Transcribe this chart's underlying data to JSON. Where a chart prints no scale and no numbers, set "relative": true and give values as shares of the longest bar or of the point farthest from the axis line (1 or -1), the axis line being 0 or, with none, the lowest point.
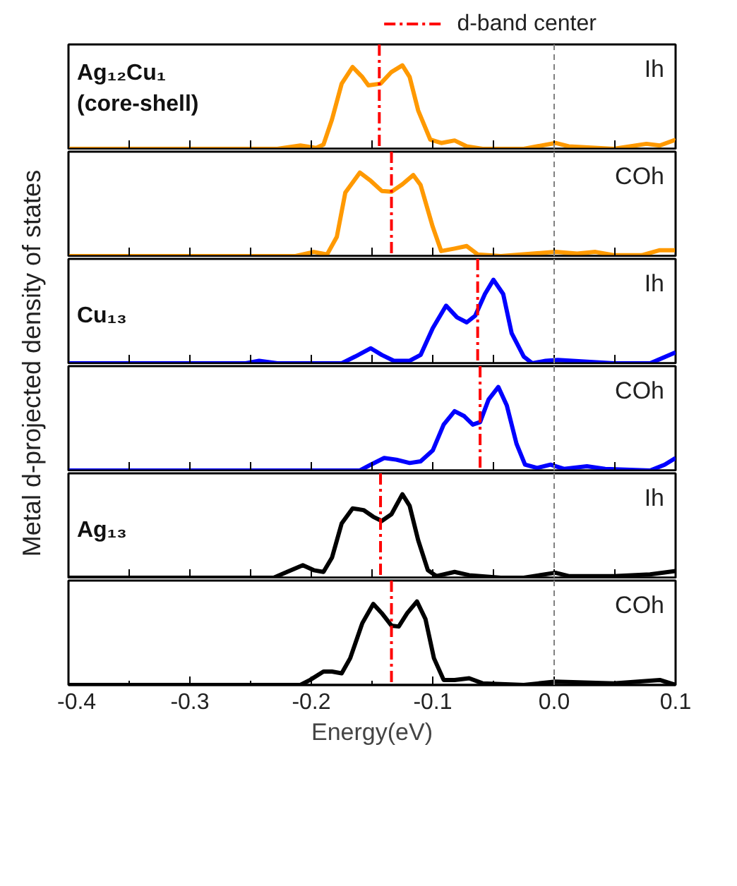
{
  "chart_data": [
    {
      "type": "line",
      "relative": true,
      "ylabel": "Metal d-projected density of states",
      "legend": "top right",
      "tick_labels": false,
      "xlim": [
        -0.4,
        0.1
      ],
      "xticks": [
        {
          "value": -0.4,
          "label": null
        },
        {
          "value": -0.35,
          "label": null
        },
        {
          "value": -0.3,
          "label": null
        },
        {
          "value": -0.25,
          "label": null
        },
        {
          "value": -0.2,
          "label": null
        },
        {
          "value": -0.15,
          "label": null
        },
        {
          "value": -0.1,
          "label": null
        },
        {
          "value": -0.05,
          "label": null
        },
        {
          "value": 0,
          "label": null
        },
        {
          "value": 0.05,
          "label": null
        },
        {
          "value": 0.1,
          "label": null
        }
      ],
      "annotations": [
        "Ih",
        "Ag₁₂Cu₁",
        "(core-shell)"
      ],
      "ref_lines": [
        {
          "axis": "x",
          "value": -0.144,
          "label": "d-band center",
          "color": "#ff0000",
          "line_style": "dashdot"
        },
        {
          "axis": "x",
          "value": 0,
          "label": null,
          "color": "#808080",
          "line_style": "dashed"
        }
      ],
      "x": [
        -0.4,
        -0.228,
        -0.209,
        -0.196,
        -0.19,
        -0.183,
        -0.175,
        -0.166,
        -0.158,
        -0.153,
        -0.143,
        -0.134,
        -0.125,
        -0.119,
        -0.112,
        -0.102,
        -0.093,
        -0.082,
        -0.072,
        -0.059,
        -0.025,
        0.001,
        0.012,
        0.049,
        0.076,
        0.087,
        0.1
      ],
      "series": [
        {
          "color": "#ff9900",
          "values": [
            0,
            0,
            0.04,
            0.01,
            0.05,
            0.35,
            0.78,
            0.98,
            0.86,
            0.76,
            0.78,
            0.92,
            1.0,
            0.86,
            0.46,
            0.11,
            0.07,
            0.1,
            0.03,
            0,
            0,
            0.07,
            0.03,
            0,
            0.06,
            0.04,
            0.11
          ]
        }
      ]
    },
    {
      "type": "line",
      "relative": true,
      "tick_labels": false,
      "xlim": [
        -0.4,
        0.1
      ],
      "xticks": [
        {
          "value": -0.4,
          "label": null
        },
        {
          "value": -0.35,
          "label": null
        },
        {
          "value": -0.3,
          "label": null
        },
        {
          "value": -0.25,
          "label": null
        },
        {
          "value": -0.2,
          "label": null
        },
        {
          "value": -0.15,
          "label": null
        },
        {
          "value": -0.1,
          "label": null
        },
        {
          "value": -0.05,
          "label": null
        },
        {
          "value": 0,
          "label": null
        },
        {
          "value": 0.05,
          "label": null
        },
        {
          "value": 0.1,
          "label": null
        }
      ],
      "annotations": [
        "COh"
      ],
      "ref_lines": [
        {
          "axis": "x",
          "value": -0.134,
          "label": null,
          "color": "#ff0000",
          "line_style": "dashdot"
        },
        {
          "axis": "x",
          "value": 0,
          "label": null,
          "color": "#808080",
          "line_style": "dashed"
        }
      ],
      "x": [
        -0.4,
        -0.213,
        -0.198,
        -0.187,
        -0.179,
        -0.172,
        -0.16,
        -0.151,
        -0.142,
        -0.134,
        -0.125,
        -0.116,
        -0.11,
        -0.1,
        -0.093,
        -0.082,
        -0.072,
        -0.063,
        -0.044,
        0.001,
        0.019,
        0.034,
        0.049,
        0.072,
        0.087,
        0.1
      ],
      "series": [
        {
          "color": "#ff9900",
          "values": [
            0,
            0,
            0.05,
            0.02,
            0.23,
            0.76,
            1.0,
            0.9,
            0.78,
            0.77,
            0.86,
            0.97,
            0.85,
            0.35,
            0.06,
            0.09,
            0.12,
            0.02,
            0,
            0.05,
            0.03,
            0.05,
            0.01,
            0.01,
            0.07,
            0.07
          ]
        }
      ]
    },
    {
      "type": "line",
      "relative": true,
      "tick_labels": false,
      "xlim": [
        -0.4,
        0.1
      ],
      "xticks": [
        {
          "value": -0.4,
          "label": null
        },
        {
          "value": -0.35,
          "label": null
        },
        {
          "value": -0.3,
          "label": null
        },
        {
          "value": -0.25,
          "label": null
        },
        {
          "value": -0.2,
          "label": null
        },
        {
          "value": -0.15,
          "label": null
        },
        {
          "value": -0.1,
          "label": null
        },
        {
          "value": -0.05,
          "label": null
        },
        {
          "value": 0,
          "label": null
        },
        {
          "value": 0.05,
          "label": null
        },
        {
          "value": 0.1,
          "label": null
        }
      ],
      "annotations": [
        "Ih",
        "Cu₁₃"
      ],
      "ref_lines": [
        {
          "axis": "x",
          "value": -0.063,
          "label": null,
          "color": "#ff0000",
          "line_style": "dashdot"
        },
        {
          "axis": "x",
          "value": 0,
          "label": null,
          "color": "#808080",
          "line_style": "dashed"
        }
      ],
      "x": [
        -0.4,
        -0.254,
        -0.243,
        -0.228,
        -0.175,
        -0.164,
        -0.151,
        -0.142,
        -0.132,
        -0.119,
        -0.11,
        -0.1,
        -0.089,
        -0.08,
        -0.072,
        -0.065,
        -0.057,
        -0.05,
        -0.042,
        -0.035,
        -0.025,
        -0.018,
        -0.007,
        0.003,
        0.049,
        0.079,
        0.1
      ],
      "series": [
        {
          "color": "#0000ff",
          "values": [
            0,
            0,
            0.03,
            0,
            0,
            0.08,
            0.18,
            0.1,
            0.03,
            0.03,
            0.1,
            0.42,
            0.69,
            0.55,
            0.49,
            0.57,
            0.83,
            1.0,
            0.83,
            0.36,
            0.08,
            0,
            0.03,
            0.04,
            0,
            0,
            0.13
          ]
        }
      ]
    },
    {
      "type": "line",
      "relative": true,
      "tick_labels": false,
      "xlim": [
        -0.4,
        0.1
      ],
      "xticks": [
        {
          "value": -0.4,
          "label": null
        },
        {
          "value": -0.35,
          "label": null
        },
        {
          "value": -0.3,
          "label": null
        },
        {
          "value": -0.25,
          "label": null
        },
        {
          "value": -0.2,
          "label": null
        },
        {
          "value": -0.15,
          "label": null
        },
        {
          "value": -0.1,
          "label": null
        },
        {
          "value": -0.05,
          "label": null
        },
        {
          "value": 0,
          "label": null
        },
        {
          "value": 0.05,
          "label": null
        },
        {
          "value": 0.1,
          "label": null
        }
      ],
      "annotations": [
        "COh"
      ],
      "ref_lines": [
        {
          "axis": "x",
          "value": -0.061,
          "label": null,
          "color": "#ff0000",
          "line_style": "dashdot"
        },
        {
          "axis": "x",
          "value": 0,
          "label": null,
          "color": "#808080",
          "line_style": "dashed"
        }
      ],
      "x": [
        -0.4,
        -0.16,
        -0.151,
        -0.14,
        -0.13,
        -0.119,
        -0.11,
        -0.1,
        -0.091,
        -0.082,
        -0.074,
        -0.067,
        -0.061,
        -0.054,
        -0.046,
        -0.039,
        -0.031,
        -0.024,
        -0.014,
        -0.003,
        0.008,
        0.027,
        0.042,
        0.079,
        0.091,
        0.1
      ],
      "series": [
        {
          "color": "#0000ff",
          "values": [
            0,
            0,
            0.07,
            0.15,
            0.13,
            0.09,
            0.11,
            0.24,
            0.55,
            0.71,
            0.65,
            0.55,
            0.58,
            0.85,
            1.0,
            0.78,
            0.32,
            0.07,
            0.03,
            0.07,
            0.02,
            0.05,
            0.02,
            0,
            0.07,
            0.15
          ]
        }
      ]
    },
    {
      "type": "line",
      "relative": true,
      "tick_labels": false,
      "xlim": [
        -0.4,
        0.1
      ],
      "xticks": [
        {
          "value": -0.4,
          "label": null
        },
        {
          "value": -0.35,
          "label": null
        },
        {
          "value": -0.3,
          "label": null
        },
        {
          "value": -0.25,
          "label": null
        },
        {
          "value": -0.2,
          "label": null
        },
        {
          "value": -0.15,
          "label": null
        },
        {
          "value": -0.1,
          "label": null
        },
        {
          "value": -0.05,
          "label": null
        },
        {
          "value": 0,
          "label": null
        },
        {
          "value": 0.05,
          "label": null
        },
        {
          "value": 0.1,
          "label": null
        }
      ],
      "annotations": [
        "Ih",
        "Ag₁₃"
      ],
      "ref_lines": [
        {
          "axis": "x",
          "value": -0.143,
          "label": null,
          "color": "#ff0000",
          "line_style": "dashdot"
        },
        {
          "axis": "x",
          "value": 0,
          "label": null,
          "color": "#808080",
          "line_style": "dashed"
        }
      ],
      "x": [
        -0.4,
        -0.231,
        -0.22,
        -0.207,
        -0.198,
        -0.19,
        -0.183,
        -0.175,
        -0.166,
        -0.157,
        -0.149,
        -0.142,
        -0.134,
        -0.125,
        -0.119,
        -0.112,
        -0.104,
        -0.097,
        -0.082,
        -0.07,
        -0.044,
        -0.025,
        0.001,
        0.012,
        0.049,
        0.079,
        0.1
      ],
      "series": [
        {
          "color": "#000000",
          "values": [
            0,
            0,
            0.07,
            0.15,
            0.09,
            0.07,
            0.24,
            0.65,
            0.83,
            0.81,
            0.73,
            0.68,
            0.76,
            1.0,
            0.86,
            0.45,
            0.09,
            0.02,
            0.07,
            0.03,
            0,
            0,
            0.06,
            0.02,
            0.02,
            0.04,
            0.08
          ]
        }
      ]
    },
    {
      "type": "line",
      "relative": true,
      "tick_labels": "x",
      "xlabel": "Energy(eV)",
      "xlim": [
        -0.4,
        0.1
      ],
      "xticks": [
        -0.4,
        {
          "value": -0.35,
          "label": null
        },
        -0.3,
        {
          "value": -0.25,
          "label": null
        },
        -0.2,
        {
          "value": -0.15,
          "label": null
        },
        -0.1,
        {
          "value": -0.05,
          "label": null
        },
        {
          "value": 0,
          "label": "0.0"
        },
        {
          "value": 0.05,
          "label": null
        },
        0.1
      ],
      "annotations": [
        "COh"
      ],
      "ref_lines": [
        {
          "axis": "x",
          "value": -0.134,
          "label": null,
          "color": "#ff0000",
          "line_style": "dashdot"
        },
        {
          "axis": "x",
          "value": 0,
          "label": null,
          "color": "#808080",
          "line_style": "dashed"
        }
      ],
      "x": [
        -0.4,
        -0.209,
        -0.201,
        -0.19,
        -0.183,
        -0.175,
        -0.168,
        -0.158,
        -0.149,
        -0.142,
        -0.134,
        -0.128,
        -0.121,
        -0.113,
        -0.106,
        -0.099,
        -0.091,
        -0.082,
        -0.07,
        -0.059,
        -0.025,
        0.001,
        0.049,
        0.087,
        0.1
      ],
      "series": [
        {
          "color": "#000000",
          "values": [
            0,
            0,
            0.06,
            0.16,
            0.16,
            0.14,
            0.32,
            0.74,
            0.97,
            0.86,
            0.71,
            0.7,
            0.86,
            1.0,
            0.79,
            0.32,
            0.06,
            0.06,
            0.08,
            0.02,
            0,
            0.04,
            0.02,
            0.06,
            0
          ]
        }
      ]
    }
  ]
}
